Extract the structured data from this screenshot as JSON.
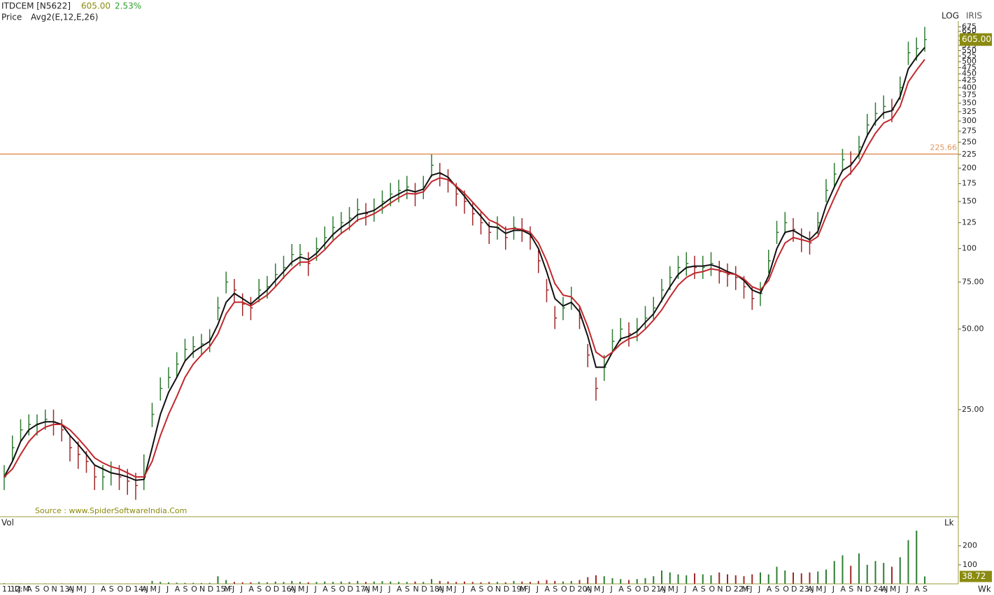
{
  "chart_data": [
    {
      "type": "ohlc",
      "title": "ITDCEM [N5622]",
      "last_price": {
        "value": 605,
        "label": "605.00"
      },
      "change": {
        "value": 2.53,
        "label": "2.53%"
      },
      "subtitle": "Price",
      "indicator": "Avg2(E,12,E,26)",
      "scale": "log",
      "scale_label": "LOG",
      "brand": "IRIS",
      "source": "Source : www.SpiderSoftwareIndia.Com",
      "up_color": "#2e7d32",
      "down_color": "#a0282a",
      "categories": [
        "11:D",
        "12:M",
        "J",
        "A",
        "S",
        "O",
        "N",
        "13:J",
        "A",
        "M",
        "J",
        "J",
        "A",
        "S",
        "O",
        "D",
        "14:J",
        "A",
        "M",
        "J",
        "J",
        "A",
        "S",
        "O",
        "N",
        "D",
        "15:F",
        "M",
        "J",
        "J",
        "A",
        "S",
        "O",
        "D",
        "16:J",
        "A",
        "M",
        "J",
        "J",
        "A",
        "S",
        "O",
        "D",
        "17:J",
        "A",
        "M",
        "J",
        "J",
        "A",
        "S",
        "N",
        "D",
        "18:J",
        "A",
        "M",
        "J",
        "J",
        "A",
        "S",
        "O",
        "N",
        "D",
        "19:F",
        "M",
        "J",
        "J",
        "A",
        "S",
        "O",
        "D",
        "20:J",
        "A",
        "M",
        "J",
        "J",
        "A",
        "S",
        "O",
        "D",
        "21:J",
        "A",
        "M",
        "J",
        "J",
        "A",
        "S",
        "O",
        "N",
        "D",
        "22:F",
        "M",
        "J",
        "J",
        "A",
        "S",
        "O",
        "D",
        "23:J",
        "A",
        "M",
        "J",
        "J",
        "A",
        "S",
        "N",
        "D",
        "24:J",
        "A",
        "M",
        "J",
        "J",
        "A",
        "S"
      ],
      "high": [
        15.5,
        20,
        23,
        24,
        24,
        25,
        25,
        23,
        20,
        19,
        17.5,
        15.5,
        15.5,
        16,
        15.5,
        15,
        14.5,
        17,
        26.5,
        33,
        36,
        41,
        46,
        47,
        48,
        50,
        66,
        82,
        77,
        68,
        66,
        77,
        79,
        88,
        94,
        104,
        104,
        97,
        110,
        121,
        132,
        137,
        143,
        154,
        148,
        154,
        165,
        176,
        181,
        187,
        176,
        187,
        225,
        209,
        198,
        176,
        165,
        148,
        137,
        126,
        132,
        121,
        132,
        130,
        121,
        99,
        77,
        61,
        66,
        72,
        61,
        44,
        33,
        40,
        50,
        55,
        53,
        55,
        61,
        66,
        77,
        86,
        94,
        97,
        94,
        94,
        97,
        90,
        88,
        86,
        79,
        72,
        75,
        99,
        127,
        137,
        130,
        119,
        116,
        137,
        182,
        209,
        236,
        231,
        264,
        319,
        352,
        374,
        363,
        440,
        594,
        616,
        675
      ],
      "low": [
        12.5,
        16,
        19,
        20,
        20,
        21,
        20,
        19,
        16,
        15,
        14.5,
        12.5,
        12.5,
        13,
        12.5,
        12,
        11.5,
        12.5,
        21.5,
        27,
        30,
        33,
        38,
        39,
        40,
        41,
        54,
        68,
        63,
        56,
        54,
        63,
        65,
        72,
        77,
        86,
        86,
        79,
        90,
        99,
        108,
        113,
        117,
        126,
        122,
        126,
        135,
        144,
        149,
        153,
        144,
        153,
        185,
        171,
        162,
        144,
        135,
        122,
        113,
        104,
        108,
        99,
        108,
        106,
        99,
        81,
        63,
        50,
        54,
        59,
        50,
        36,
        27,
        32,
        41,
        45,
        43,
        45,
        50,
        54,
        63,
        70,
        77,
        79,
        77,
        77,
        79,
        74,
        72,
        70,
        65,
        59,
        61,
        81,
        104,
        113,
        106,
        97,
        95,
        113,
        149,
        171,
        194,
        189,
        216,
        261,
        288,
        306,
        297,
        360,
        486,
        504,
        545
      ],
      "close": [
        14,
        18,
        21,
        22,
        22,
        23,
        22.5,
        21,
        18,
        17,
        16,
        14,
        14,
        14.5,
        14,
        13.5,
        13,
        14,
        24,
        30,
        33,
        37,
        42,
        43,
        44,
        46,
        60,
        75,
        70,
        62,
        60,
        70,
        72,
        80,
        85,
        95,
        95,
        88,
        100,
        110,
        120,
        125,
        130,
        140,
        135,
        140,
        150,
        160,
        165,
        170,
        160,
        170,
        205,
        190,
        180,
        160,
        150,
        135,
        125,
        115,
        120,
        110,
        120,
        118,
        110,
        90,
        70,
        55,
        60,
        65,
        55,
        40,
        30,
        36,
        45,
        50,
        48,
        50,
        55,
        60,
        70,
        78,
        85,
        88,
        85,
        85,
        88,
        82,
        80,
        78,
        72,
        65,
        68,
        90,
        115,
        125,
        118,
        108,
        105,
        125,
        165,
        190,
        215,
        210,
        240,
        290,
        320,
        340,
        330,
        400,
        540,
        560,
        605
      ],
      "averages": [
        {
          "color": "#111111",
          "values": [
            14,
            16,
            19,
            21,
            22,
            22.5,
            22.5,
            22,
            20,
            18.5,
            17,
            15.5,
            15,
            14.5,
            14.3,
            14,
            13.6,
            13.7,
            18,
            24,
            29,
            33,
            38,
            41,
            43,
            45,
            52,
            63,
            68,
            65,
            62,
            66,
            70,
            76,
            82,
            89,
            93,
            91,
            96,
            104,
            113,
            120,
            126,
            134,
            136,
            139,
            146,
            154,
            160,
            166,
            163,
            167,
            188,
            192,
            185,
            170,
            157,
            143,
            132,
            121,
            120,
            114,
            117,
            117,
            113,
            100,
            82,
            65,
            61,
            63,
            58,
            47,
            36,
            36,
            41,
            46,
            47,
            49,
            53,
            57,
            64,
            72,
            80,
            85,
            86,
            86,
            87,
            85,
            82,
            80,
            76,
            70,
            68,
            79,
            100,
            115,
            117,
            112,
            108,
            116,
            145,
            170,
            196,
            205,
            225,
            265,
            298,
            322,
            328,
            370,
            470,
            520,
            565
          ]
        },
        {
          "color": "#c0282d",
          "values": [
            14,
            15,
            17,
            19,
            20.5,
            21.5,
            22,
            22,
            21,
            19.5,
            18,
            16.5,
            15.8,
            15.3,
            15,
            14.5,
            14,
            14,
            16,
            20,
            24,
            28,
            33,
            37,
            40,
            43,
            48,
            57,
            63,
            63,
            61,
            64,
            67,
            72,
            78,
            84,
            89,
            89,
            93,
            99,
            107,
            114,
            120,
            128,
            131,
            135,
            141,
            148,
            155,
            161,
            160,
            163,
            178,
            184,
            181,
            171,
            161,
            149,
            138,
            128,
            124,
            118,
            119,
            118,
            115,
            105,
            90,
            74,
            67,
            66,
            61,
            51,
            41,
            39,
            41,
            44,
            46,
            47,
            50,
            54,
            59,
            66,
            73,
            78,
            81,
            82,
            84,
            83,
            81,
            80,
            77,
            72,
            70,
            76,
            91,
            105,
            110,
            108,
            106,
            111,
            132,
            155,
            180,
            192,
            210,
            240,
            270,
            295,
            305,
            340,
            420,
            465,
            510
          ]
        }
      ],
      "hline": {
        "value": 225.66,
        "label": "225.66",
        "color": "#e0955a"
      },
      "ylim": [
        10,
        710
      ],
      "yticks": [
        675,
        650,
        625,
        600,
        575,
        550,
        525,
        500,
        475,
        450,
        425,
        400,
        375,
        350,
        325,
        300,
        275,
        250,
        225,
        200,
        175,
        150,
        125,
        100,
        {
          "value": 75,
          "label": "75.00"
        },
        {
          "value": 50,
          "label": "50.00"
        },
        {
          "value": 25,
          "label": "25.00"
        }
      ]
    },
    {
      "type": "bar",
      "title": "Vol",
      "unit_label": "Lk",
      "values": [
        3,
        2,
        2,
        1,
        1,
        2,
        1,
        2,
        1,
        1,
        1,
        1,
        1,
        1,
        1,
        1,
        1,
        2,
        15,
        10,
        8,
        6,
        5,
        5,
        4,
        5,
        40,
        20,
        10,
        8,
        8,
        10,
        8,
        12,
        10,
        15,
        10,
        8,
        10,
        12,
        10,
        12,
        10,
        15,
        10,
        12,
        14,
        12,
        10,
        10,
        12,
        10,
        25,
        15,
        12,
        10,
        12,
        10,
        8,
        10,
        10,
        8,
        15,
        12,
        10,
        15,
        20,
        15,
        12,
        15,
        20,
        35,
        45,
        40,
        30,
        25,
        20,
        25,
        30,
        40,
        70,
        60,
        50,
        45,
        55,
        50,
        45,
        60,
        50,
        45,
        40,
        50,
        60,
        50,
        90,
        70,
        60,
        55,
        60,
        65,
        75,
        120,
        150,
        95,
        160,
        100,
        120,
        110,
        90,
        140,
        230,
        280,
        38.72
      ],
      "last_value": {
        "value": 38.72,
        "label": "38.72"
      },
      "period": "Wk",
      "ylim": [
        0,
        350
      ],
      "yticks": [
        100,
        200
      ]
    }
  ]
}
